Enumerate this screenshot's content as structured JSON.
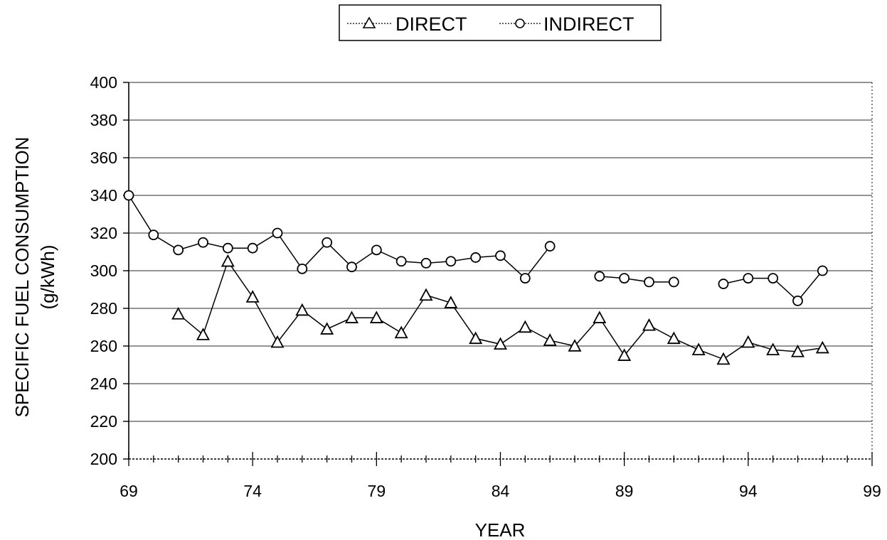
{
  "chart_data": {
    "type": "line",
    "xlabel": "YEAR",
    "ylabel_lines": [
      "SPECIFIC FUEL CONSUMPTION",
      "(g/kWh)"
    ],
    "xlim": [
      69,
      99
    ],
    "ylim": [
      200,
      400
    ],
    "xticks": [
      69,
      74,
      79,
      84,
      89,
      94,
      99
    ],
    "yticks": [
      200,
      220,
      240,
      260,
      280,
      300,
      320,
      340,
      360,
      380,
      400
    ],
    "grid": "horizontal",
    "legend_position": "top-center",
    "series": [
      {
        "name": "DIRECT",
        "marker": "triangle",
        "x": [
          71,
          72,
          73,
          74,
          75,
          76,
          77,
          78,
          79,
          80,
          81,
          82,
          83,
          84,
          85,
          86,
          87,
          88,
          89,
          90,
          91,
          92,
          93,
          94,
          95,
          96,
          97
        ],
        "y": [
          277,
          266,
          305,
          286,
          262,
          279,
          269,
          275,
          275,
          267,
          287,
          283,
          264,
          261,
          270,
          263,
          260,
          275,
          255,
          271,
          264,
          258,
          253,
          262,
          258,
          257,
          259
        ]
      },
      {
        "name": "INDIRECT",
        "marker": "circle",
        "segments": [
          {
            "x": [
              69,
              70,
              71,
              72,
              73,
              74,
              75,
              76,
              77,
              78,
              79,
              80,
              81,
              82,
              83,
              84,
              85,
              86
            ],
            "y": [
              340,
              319,
              311,
              315,
              312,
              312,
              320,
              301,
              315,
              302,
              311,
              305,
              304,
              305,
              307,
              308,
              296,
              313
            ]
          },
          {
            "x": [
              88,
              89,
              90,
              91
            ],
            "y": [
              297,
              296,
              294,
              294
            ]
          },
          {
            "x": [
              93,
              94,
              95,
              96,
              97
            ],
            "y": [
              293,
              296,
              296,
              284,
              300
            ]
          }
        ]
      }
    ]
  }
}
